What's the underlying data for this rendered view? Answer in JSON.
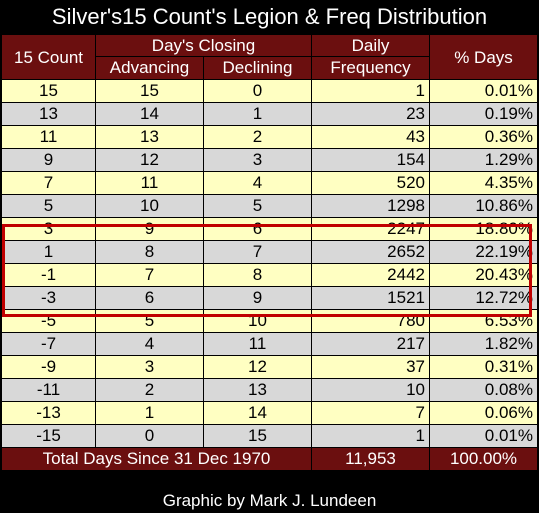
{
  "title": "Silver's15 Count's Legion & Freq Distribution",
  "headers": {
    "count": "15 Count",
    "days_closing": "Day's Closing",
    "advancing": "Advancing",
    "declining": "Declining",
    "daily_frequency": "Daily Frequency",
    "pct_days": "% Days"
  },
  "rows": [
    {
      "count": "15",
      "adv": "15",
      "dec": "0",
      "freq": "1",
      "pct": "0.01%"
    },
    {
      "count": "13",
      "adv": "14",
      "dec": "1",
      "freq": "23",
      "pct": "0.19%"
    },
    {
      "count": "11",
      "adv": "13",
      "dec": "2",
      "freq": "43",
      "pct": "0.36%"
    },
    {
      "count": "9",
      "adv": "12",
      "dec": "3",
      "freq": "154",
      "pct": "1.29%"
    },
    {
      "count": "7",
      "adv": "11",
      "dec": "4",
      "freq": "520",
      "pct": "4.35%"
    },
    {
      "count": "5",
      "adv": "10",
      "dec": "5",
      "freq": "1298",
      "pct": "10.86%"
    },
    {
      "count": "3",
      "adv": "9",
      "dec": "6",
      "freq": "2247",
      "pct": "18.80%"
    },
    {
      "count": "1",
      "adv": "8",
      "dec": "7",
      "freq": "2652",
      "pct": "22.19%"
    },
    {
      "count": "-1",
      "adv": "7",
      "dec": "8",
      "freq": "2442",
      "pct": "20.43%"
    },
    {
      "count": "-3",
      "adv": "6",
      "dec": "9",
      "freq": "1521",
      "pct": "12.72%"
    },
    {
      "count": "-5",
      "adv": "5",
      "dec": "10",
      "freq": "780",
      "pct": "6.53%"
    },
    {
      "count": "-7",
      "adv": "4",
      "dec": "11",
      "freq": "217",
      "pct": "1.82%"
    },
    {
      "count": "-9",
      "adv": "3",
      "dec": "12",
      "freq": "37",
      "pct": "0.31%"
    },
    {
      "count": "-11",
      "adv": "2",
      "dec": "13",
      "freq": "10",
      "pct": "0.08%"
    },
    {
      "count": "-13",
      "adv": "1",
      "dec": "14",
      "freq": "7",
      "pct": "0.06%"
    },
    {
      "count": "-15",
      "adv": "0",
      "dec": "15",
      "freq": "1",
      "pct": "0.01%"
    }
  ],
  "footer": {
    "label": "Total Days Since 31 Dec 1970",
    "total": "11,953",
    "pct": "100.00%"
  },
  "credit": "Graphic by Mark J. Lundeen",
  "colors": {
    "header_bg": "#6b0f0f",
    "odd_row": "#ffffc2",
    "even_row": "#d8d8d8",
    "highlight_border": "#c00000"
  }
}
